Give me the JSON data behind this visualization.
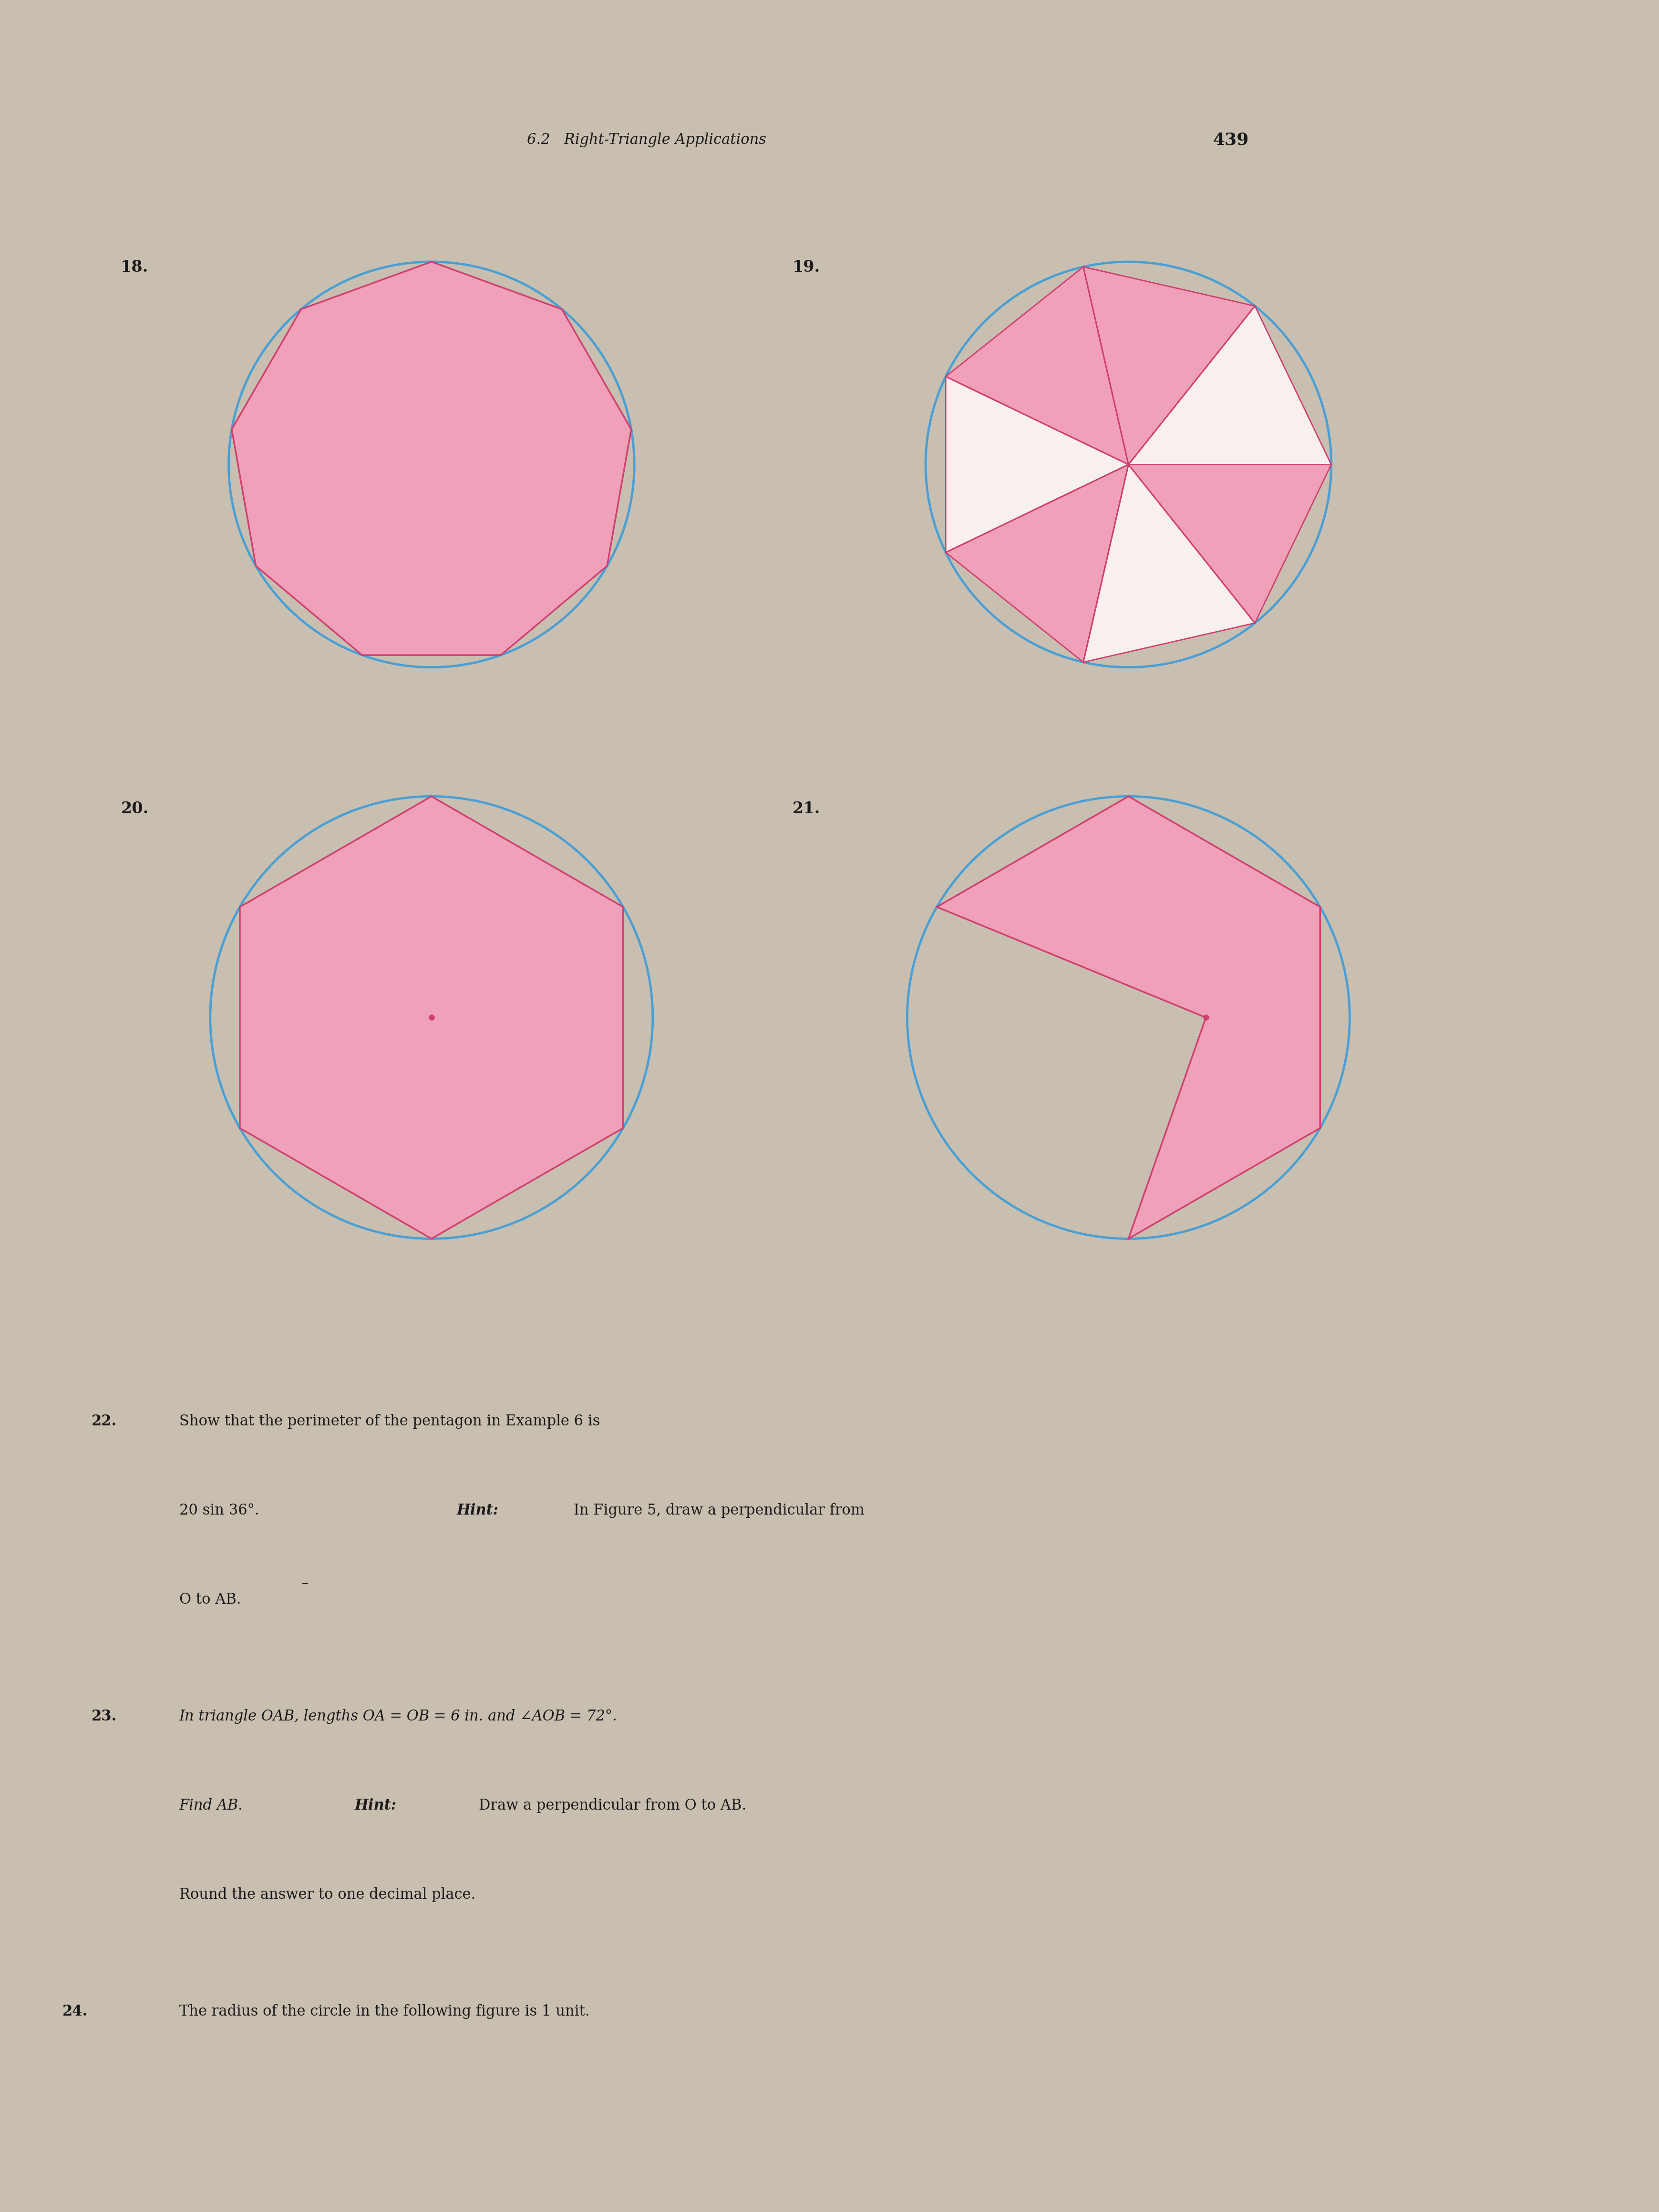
{
  "bg_color": "#d8cfc0",
  "page_bg": "#e8e0d0",
  "paper_bg": "#f0ebe0",
  "circle_color": "#4a9fd4",
  "polygon_fill": "#f0a0b8",
  "polygon_edge": "#d04070",
  "center_dot_color": "#d04070",
  "text_color": "#1a1a1a",
  "header_text": "6.2   Right-Triangle Applications",
  "page_number": "439",
  "label_18": "18.",
  "label_19": "19.",
  "label_20": "20.",
  "label_21": "21.",
  "fig_18_sides": 9,
  "fig_19_spokes": 7,
  "fig_20_sides": 6,
  "fig_21_sides": 6,
  "fig_21_notch": true,
  "text_22": "22.  Show that the perimeter of the pentagon in Example 6 is\n     20 sin 36°.    Hint: In Figure 5, draw a perpendicular from\n     O to AB.",
  "text_23": "23.  In triangle OAB, lengths OA = OB = 6 in. and ∠AOB = 72°.\n     Find AB.    Hint: Draw a perpendicular from O to AB.\n     Round the answer to one decimal place.",
  "text_24": "24.  The radius of the circle in the following figure is 1 unit."
}
